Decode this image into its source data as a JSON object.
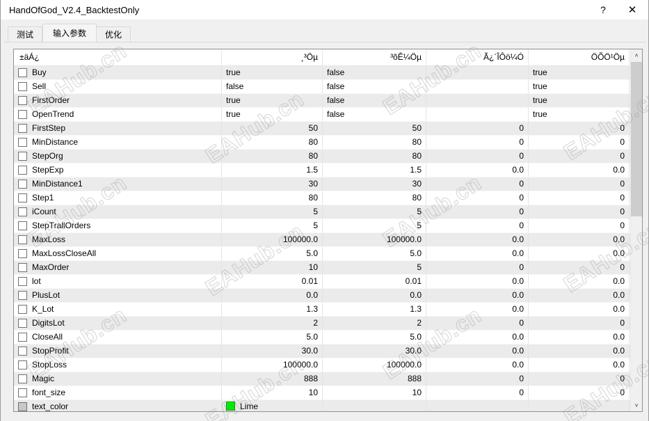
{
  "window": {
    "title": "HandOfGod_V2.4_BacktestOnly",
    "help_label": "?",
    "close_label": "✕"
  },
  "tabs": [
    {
      "label": "测试",
      "active": false
    },
    {
      "label": "输入参数",
      "active": true
    },
    {
      "label": "优化",
      "active": false
    }
  ],
  "watermark": {
    "text": "EAHub.cn"
  },
  "colors": {
    "lime_swatch": "#00ee00",
    "row_stripe": "#ebebeb",
    "titlebar": "#ffffff"
  },
  "scrollbar": {
    "up_icon": "∧",
    "down_icon": "∨"
  },
  "table": {
    "headers": [
      "±äÁ¿",
      "¸³Öµ",
      "³õÊ¼Öµ",
      "Ã¿´ÎÔö¼Ó",
      "ÖÕÖ¹Öµ"
    ],
    "rows": [
      {
        "name": "Buy",
        "type": "bool",
        "value": "true",
        "start": "false",
        "step": "",
        "stop": "true"
      },
      {
        "name": "Sell",
        "type": "bool",
        "value": "false",
        "start": "false",
        "step": "",
        "stop": "true"
      },
      {
        "name": "FirstOrder",
        "type": "bool",
        "value": "true",
        "start": "false",
        "step": "",
        "stop": "true"
      },
      {
        "name": "OpenTrend",
        "type": "bool",
        "value": "true",
        "start": "false",
        "step": "",
        "stop": "true"
      },
      {
        "name": "FirstStep",
        "type": "num",
        "value": "50",
        "start": "50",
        "step": "0",
        "stop": "0"
      },
      {
        "name": "MinDistance",
        "type": "num",
        "value": "80",
        "start": "80",
        "step": "0",
        "stop": "0"
      },
      {
        "name": "StepOrg",
        "type": "num",
        "value": "80",
        "start": "80",
        "step": "0",
        "stop": "0"
      },
      {
        "name": "StepExp",
        "type": "num",
        "value": "1.5",
        "start": "1.5",
        "step": "0.0",
        "stop": "0.0"
      },
      {
        "name": "MinDistance1",
        "type": "num",
        "value": "30",
        "start": "30",
        "step": "0",
        "stop": "0"
      },
      {
        "name": "Step1",
        "type": "num",
        "value": "80",
        "start": "80",
        "step": "0",
        "stop": "0"
      },
      {
        "name": "iCount",
        "type": "num",
        "value": "5",
        "start": "5",
        "step": "0",
        "stop": "0"
      },
      {
        "name": "StepTrallOrders",
        "type": "num",
        "value": "5",
        "start": "5",
        "step": "0",
        "stop": "0"
      },
      {
        "name": "MaxLoss",
        "type": "num",
        "value": "100000.0",
        "start": "100000.0",
        "step": "0.0",
        "stop": "0.0"
      },
      {
        "name": "MaxLossCloseAll",
        "type": "num",
        "value": "5.0",
        "start": "5.0",
        "step": "0.0",
        "stop": "0.0"
      },
      {
        "name": "MaxOrder",
        "type": "num",
        "value": "10",
        "start": "5",
        "step": "0",
        "stop": "0"
      },
      {
        "name": "lot",
        "type": "num",
        "value": "0.01",
        "start": "0.01",
        "step": "0.0",
        "stop": "0.0"
      },
      {
        "name": "PlusLot",
        "type": "num",
        "value": "0.0",
        "start": "0.0",
        "step": "0.0",
        "stop": "0.0"
      },
      {
        "name": "K_Lot",
        "type": "num",
        "value": "1.3",
        "start": "1.3",
        "step": "0.0",
        "stop": "0.0"
      },
      {
        "name": "DigitsLot",
        "type": "num",
        "value": "2",
        "start": "2",
        "step": "0",
        "stop": "0"
      },
      {
        "name": "CloseAll",
        "type": "num",
        "value": "5.0",
        "start": "5.0",
        "step": "0.0",
        "stop": "0.0"
      },
      {
        "name": "StopProfit",
        "type": "num",
        "value": "30.0",
        "start": "30.0",
        "step": "0.0",
        "stop": "0.0"
      },
      {
        "name": "StopLoss",
        "type": "num",
        "value": "100000.0",
        "start": "100000.0",
        "step": "0.0",
        "stop": "0.0"
      },
      {
        "name": "Magic",
        "type": "num",
        "value": "888",
        "start": "888",
        "step": "0",
        "stop": "0"
      },
      {
        "name": "font_size",
        "type": "num",
        "value": "10",
        "start": "10",
        "step": "0",
        "stop": "0"
      },
      {
        "name": "text_color",
        "type": "color",
        "value": "Lime",
        "start": "",
        "step": "",
        "stop": "",
        "disabled": true
      }
    ]
  }
}
